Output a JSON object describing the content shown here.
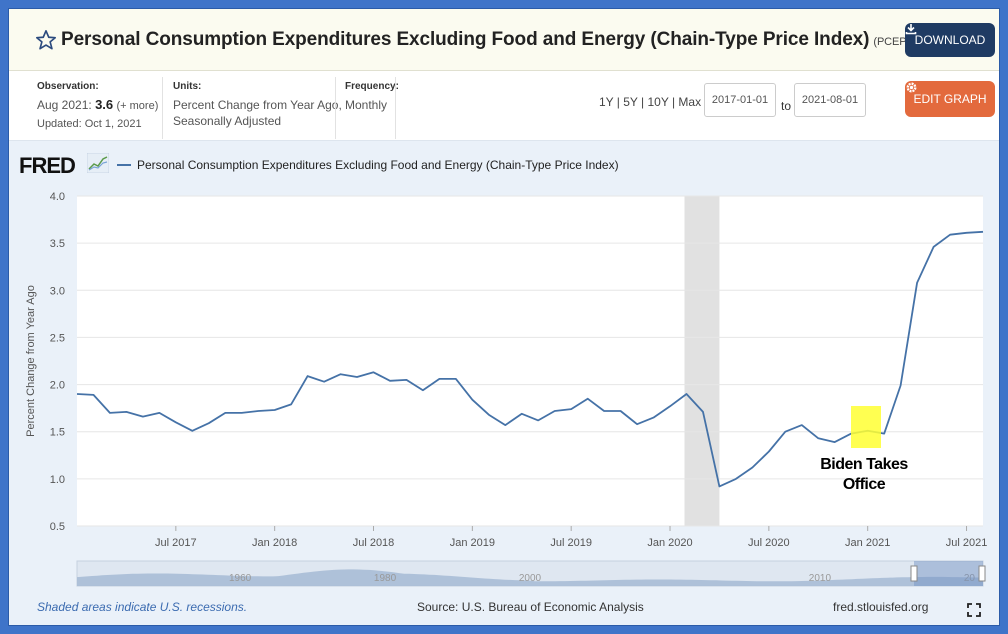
{
  "header": {
    "title": "Personal Consumption Expenditures Excluding Food and Energy (Chain-Type Price Index)",
    "series_id": "(PCEPILFE)",
    "download_label": "DOWNLOAD",
    "star_icon": "star-outline-icon"
  },
  "meta": {
    "observation_label": "Observation:",
    "observation_date": "Aug 2021:",
    "observation_value": "3.6",
    "observation_more": "(+ more)",
    "updated": "Updated: Oct 1, 2021",
    "units_label": "Units:",
    "units_line1": "Percent Change from Year Ago,",
    "units_line2": "Seasonally Adjusted",
    "frequency_label": "Frequency:",
    "frequency_value": "Monthly",
    "range_links": "1Y | 5Y | 10Y | Max",
    "start_date": "2017-01-01",
    "to_label": "to",
    "end_date": "2021-08-01",
    "edit_label": "EDIT GRAPH"
  },
  "brand": {
    "logo": "FRED",
    "accent": "#4572a7"
  },
  "footer": {
    "recession_note": "Shaded areas indicate U.S. recessions.",
    "source": "Source: U.S. Bureau of Economic Analysis",
    "site": "fred.stlouisfed.org"
  },
  "annotation": {
    "line1": "Biden Takes",
    "line2": "Office"
  },
  "chart_data": {
    "type": "line",
    "title": "",
    "xlabel": "",
    "ylabel": "Percent Change from Year Ago",
    "ylim": [
      0.5,
      4.0
    ],
    "yticks": [
      "4.0",
      "3.5",
      "3.0",
      "2.5",
      "2.0",
      "1.5",
      "1.0",
      "0.5"
    ],
    "xticks": [
      "Jul 2017",
      "Jan 2018",
      "Jul 2018",
      "Jan 2019",
      "Jul 2019",
      "Jan 2020",
      "Jul 2020",
      "Jan 2021",
      "Jul 2021"
    ],
    "grid": true,
    "legend_position": "top-left",
    "recession": {
      "start": "2020-02",
      "end": "2020-04"
    },
    "navigator_labels": [
      "1960",
      "1980",
      "2000",
      "2010",
      "20"
    ],
    "series": [
      {
        "name": "Personal Consumption Expenditures Excluding Food and Energy (Chain-Type Price Index)",
        "color": "#4572a7",
        "x": [
          "2017-01",
          "2017-02",
          "2017-03",
          "2017-04",
          "2017-05",
          "2017-06",
          "2017-07",
          "2017-08",
          "2017-09",
          "2017-10",
          "2017-11",
          "2017-12",
          "2018-01",
          "2018-02",
          "2018-03",
          "2018-04",
          "2018-05",
          "2018-06",
          "2018-07",
          "2018-08",
          "2018-09",
          "2018-10",
          "2018-11",
          "2018-12",
          "2019-01",
          "2019-02",
          "2019-03",
          "2019-04",
          "2019-05",
          "2019-06",
          "2019-07",
          "2019-08",
          "2019-09",
          "2019-10",
          "2019-11",
          "2019-12",
          "2020-01",
          "2020-02",
          "2020-03",
          "2020-04",
          "2020-05",
          "2020-06",
          "2020-07",
          "2020-08",
          "2020-09",
          "2020-10",
          "2020-11",
          "2020-12",
          "2021-01",
          "2021-02",
          "2021-03",
          "2021-04",
          "2021-05",
          "2021-06",
          "2021-07",
          "2021-08"
        ],
        "values": [
          1.9,
          1.89,
          1.7,
          1.71,
          1.66,
          1.7,
          1.6,
          1.51,
          1.59,
          1.7,
          1.7,
          1.72,
          1.73,
          1.79,
          2.09,
          2.03,
          2.11,
          2.08,
          2.13,
          2.04,
          2.05,
          1.94,
          2.06,
          2.06,
          1.84,
          1.68,
          1.57,
          1.69,
          1.62,
          1.72,
          1.74,
          1.85,
          1.72,
          1.72,
          1.58,
          1.65,
          1.77,
          1.9,
          1.71,
          0.92,
          1.0,
          1.12,
          1.29,
          1.5,
          1.57,
          1.43,
          1.39,
          1.48,
          1.51,
          1.48,
          1.99,
          3.08,
          3.46,
          3.59,
          3.61,
          3.62
        ]
      }
    ]
  }
}
